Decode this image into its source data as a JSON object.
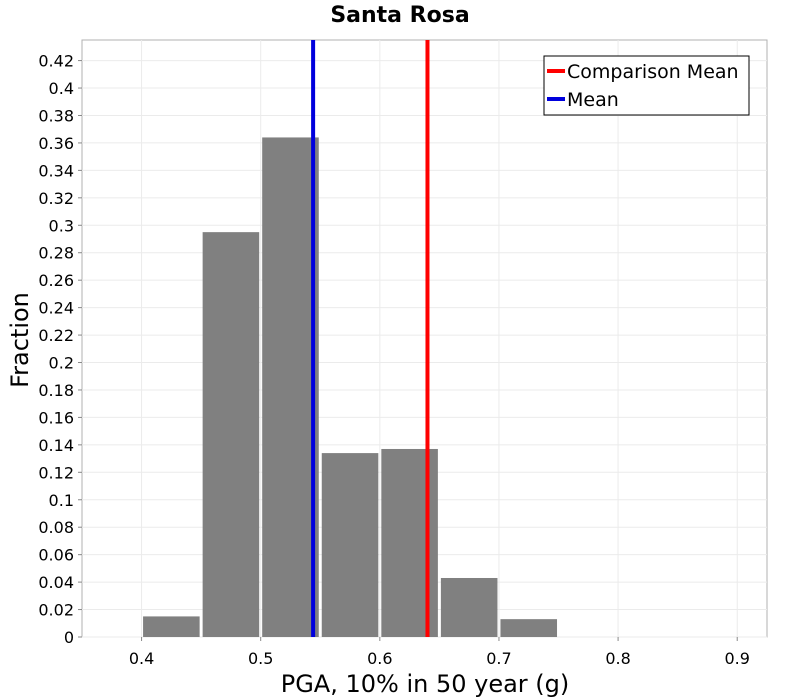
{
  "chart_data": {
    "type": "histogram",
    "title": "Santa Rosa",
    "xlabel": "PGA, 10% in 50 year (g)",
    "ylabel": "Fraction",
    "xlim": [
      0.35,
      0.925
    ],
    "ylim": [
      0,
      0.435
    ],
    "grid": true,
    "xticks": [
      0.4,
      0.5,
      0.6,
      0.7,
      0.8,
      0.9
    ],
    "xtick_labels": [
      "0.4",
      "0.5",
      "0.6",
      "0.7",
      "0.8",
      "0.9"
    ],
    "yticks": [
      0,
      0.02,
      0.04,
      0.06,
      0.08,
      0.1,
      0.12,
      0.14,
      0.16,
      0.18,
      0.2,
      0.22,
      0.24,
      0.26,
      0.28,
      0.3,
      0.32,
      0.34,
      0.36,
      0.38,
      0.4,
      0.42
    ],
    "ytick_labels": [
      "0",
      "0.02",
      "0.04",
      "0.06",
      "0.08",
      "0.1",
      "0.12",
      "0.14",
      "0.16",
      "0.18",
      "0.2",
      "0.22",
      "0.24",
      "0.26",
      "0.28",
      "0.3",
      "0.32",
      "0.34",
      "0.36",
      "0.38",
      "0.4",
      "0.42"
    ],
    "bar_width": 0.05,
    "bins": [
      {
        "x0": 0.4,
        "x1": 0.45,
        "value": 0.015
      },
      {
        "x0": 0.45,
        "x1": 0.5,
        "value": 0.295
      },
      {
        "x0": 0.5,
        "x1": 0.55,
        "value": 0.364
      },
      {
        "x0": 0.55,
        "x1": 0.6,
        "value": 0.134
      },
      {
        "x0": 0.6,
        "x1": 0.65,
        "value": 0.137
      },
      {
        "x0": 0.65,
        "x1": 0.7,
        "value": 0.043
      },
      {
        "x0": 0.7,
        "x1": 0.75,
        "value": 0.013
      }
    ],
    "bar_color": "#808080",
    "vlines": [
      {
        "name": "Comparison Mean",
        "x": 0.64,
        "color": "#ff0000"
      },
      {
        "name": "Mean",
        "x": 0.544,
        "color": "#0000dd"
      }
    ],
    "legend_position": "top-right"
  }
}
